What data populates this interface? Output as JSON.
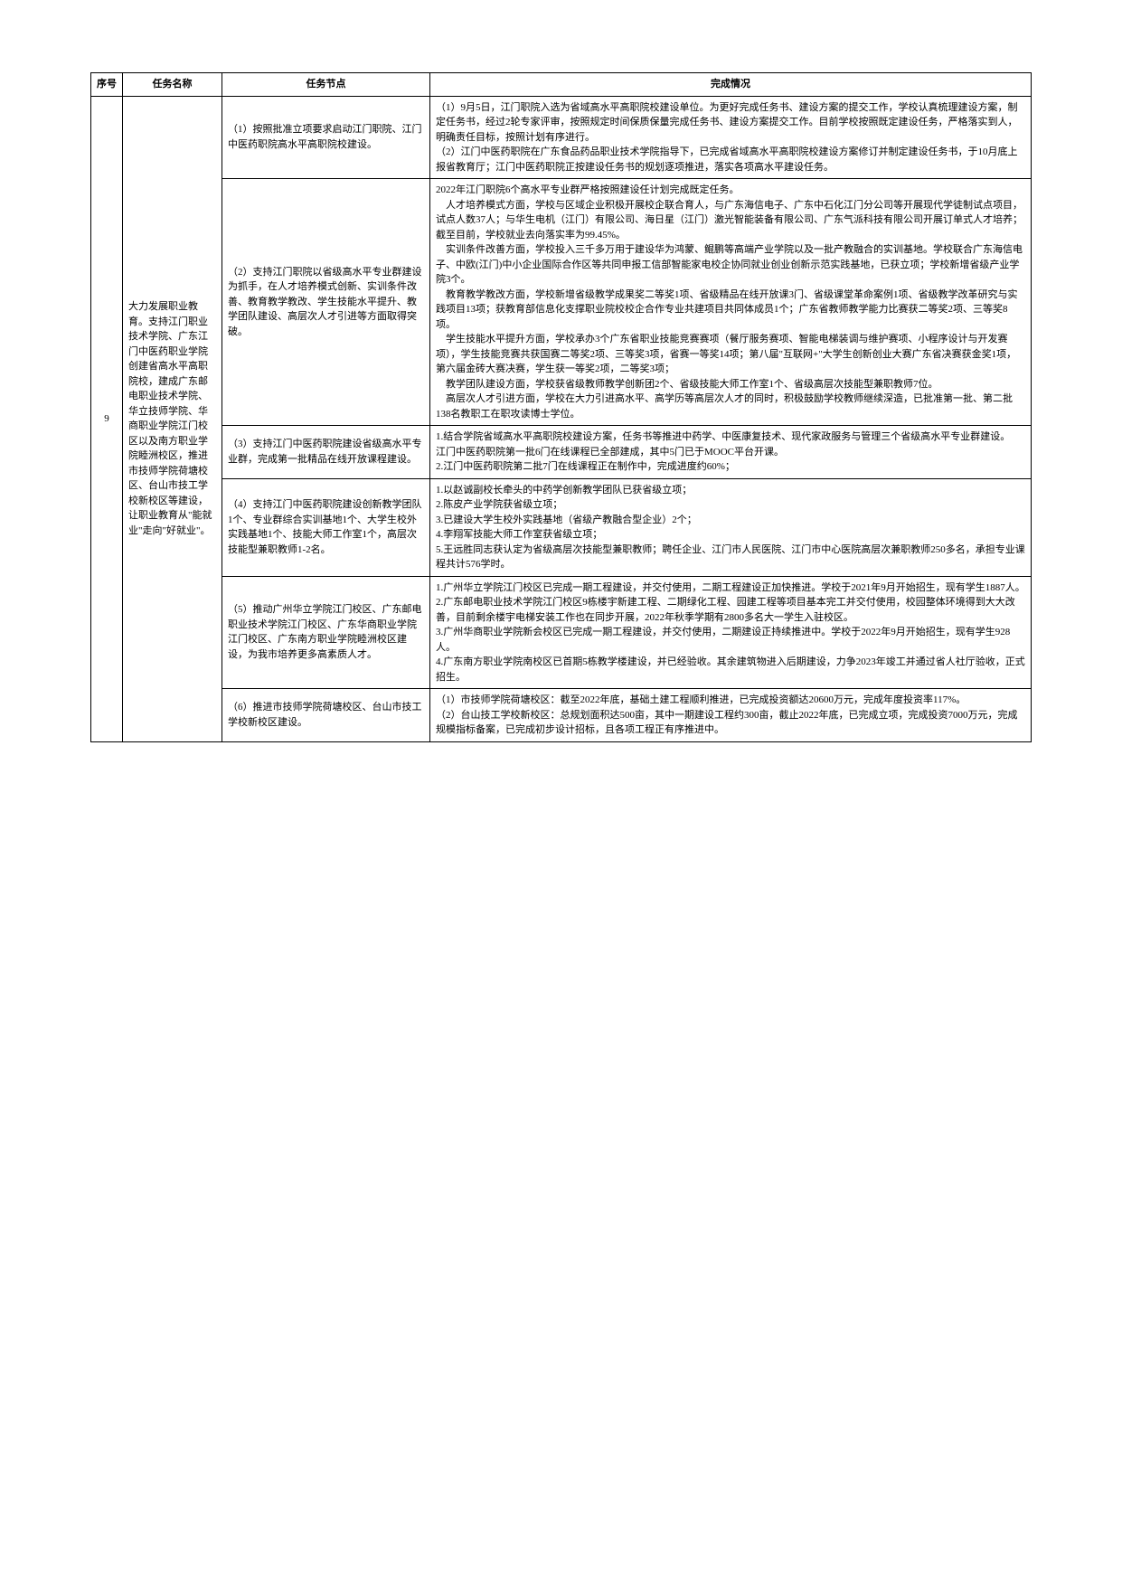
{
  "headers": {
    "seq": "序号",
    "name": "任务名称",
    "node": "任务节点",
    "status": "完成情况"
  },
  "row": {
    "seq": "9",
    "name": "大力发展职业教育。支持江门职业技术学院、广东江门中医药职业学院创建省高水平高职院校，建成广东邮电职业技术学院、华立技师学院、华商职业学院江门校区以及南方职业学院睦洲校区，推进市技师学院荷塘校区、台山市技工学校新校区等建设，让职业教育从\"能就业\"走向\"好就业\"。",
    "nodes": [
      {
        "node": "（1）按照批准立项要求启动江门职院、江门中医药职院高水平高职院校建设。",
        "status": "（1）9月5日，江门职院入选为省域高水平高职院校建设单位。为更好完成任务书、建设方案的提交工作，学校认真梳理建设方案，制定任务书，经过2轮专家评审，按照规定时间保质保量完成任务书、建设方案提交工作。目前学校按照既定建设任务，严格落实到人，明确责任目标，按照计划有序进行。\n（2）江门中医药职院在广东食品药品职业技术学院指导下，已完成省域高水平高职院校建设方案修订并制定建设任务书，于10月底上报省教育厅；江门中医药职院正按建设任务书的规划逐项推进，落实各项高水平建设任务。"
      },
      {
        "node": "（2）支持江门职院以省级高水平专业群建设为抓手，在人才培养模式创新、实训条件改善、教育教学教改、学生技能水平提升、教学团队建设、高层次人才引进等方面取得突破。",
        "status": "2022年江门职院6个高水平专业群严格按照建设任计划完成既定任务。\n    人才培养模式方面，学校与区域企业积极开展校企联合育人，与广东海信电子、广东中石化江门分公司等开展现代学徒制试点项目，试点人数37人；与华生电机（江门）有限公司、海日星（江门）激光智能装备有限公司、广东气派科技有限公司开展订单式人才培养；截至目前，学校就业去向落实率为99.45%。\n    实训条件改善方面，学校投入三千多万用于建设华为鸿蒙、鲲鹏等高端产业学院以及一批产教融合的实训基地。学校联合广东海信电子、中欧(江门)中小企业国际合作区等共同申报工信部智能家电校企协同就业创业创新示范实践基地，已获立项；学校新增省级产业学院3个。\n    教育教学教改方面，学校新增省级教学成果奖二等奖1项、省级精品在线开放课3门、省级课堂革命案例1项、省级教学改革研究与实践项目13项；获教育部信息化支撑职业院校校企合作专业共建项目共同体成员1个；广东省教师教学能力比赛获二等奖2项、三等奖8项。\n    学生技能水平提升方面，学校承办3个广东省职业技能竞赛赛项（餐厅服务赛项、智能电梯装调与维护赛项、小程序设计与开发赛项），学生技能竞赛共获国赛二等奖2项、三等奖3项，省赛一等奖14项；第八届\"互联网+\"大学生创新创业大赛广东省决赛获金奖1项，第六届金砖大赛决赛，学生获一等奖2项，二等奖3项；\n    教学团队建设方面，学校获省级教师教学创新团2个、省级技能大师工作室1个、省级高层次技能型兼职教师7位。\n    高层次人才引进方面，学校在大力引进高水平、高学历等高层次人才的同时，积极鼓励学校教师继续深造，已批准第一批、第二批138名教职工在职攻读博士学位。"
      },
      {
        "node": "（3）支持江门中医药职院建设省级高水平专业群，完成第一批精品在线开放课程建设。",
        "status": "1.结合学院省域高水平高职院校建设方案，任务书等推进中药学、中医康复技术、现代家政服务与管理三个省级高水平专业群建设。\n江门中医药职院第一批6门在线课程已全部建成，其中5门已于MOOC平台开课。\n2.江门中医药职院第二批7门在线课程正在制作中，完成进度约60%；"
      },
      {
        "node": "（4）支持江门中医药职院建设创新教学团队1个、专业群综合实训基地1个、大学生校外实践基地1个、技能大师工作室1个，高层次技能型兼职教师1-2名。",
        "status": "1.以赵诚副校长牵头的中药学创新教学团队已获省级立项；\n2.陈皮产业学院获省级立项；\n3.已建设大学生校外实践基地（省级产教融合型企业）2个；\n4.李翔军技能大师工作室获省级立项；\n5.王远胜同志获认定为省级高层次技能型兼职教师；聘任企业、江门市人民医院、江门市中心医院高层次兼职教师250多名，承担专业课程共计576学时。"
      },
      {
        "node": "（5）推动广州华立学院江门校区、广东邮电职业技术学院江门校区、广东华商职业学院江门校区、广东南方职业学院睦洲校区建设，为我市培养更多高素质人才。",
        "status": "1.广州华立学院江门校区已完成一期工程建设，并交付使用，二期工程建设正加快推进。学校于2021年9月开始招生，现有学生1887人。\n2.广东邮电职业技术学院江门校区9栋楼宇新建工程、二期绿化工程、园建工程等项目基本完工并交付使用，校园整体环境得到大大改善，目前剩余楼宇电梯安装工作也在同步开展，2022年秋季学期有2800多名大一学生入驻校区。\n3.广州华商职业学院新会校区已完成一期工程建设，并交付使用，二期建设正持续推进中。学校于2022年9月开始招生，现有学生928人。\n4.广东南方职业学院南校区已首期5栋教学楼建设，并已经验收。其余建筑物进入后期建设，力争2023年竣工并通过省人社厅验收，正式招生。"
      },
      {
        "node": "（6）推进市技师学院荷塘校区、台山市技工学校新校区建设。",
        "status": "（1）市技师学院荷塘校区：截至2022年底，基础土建工程顺利推进，已完成投资额达20600万元，完成年度投资率117%。\n（2）台山技工学校新校区：总规划面积达500亩，其中一期建设工程约300亩，截止2022年底，已完成立项，完成投资7000万元，完成规模指标备案，已完成初步设计招标，且各项工程正有序推进中。"
      }
    ]
  }
}
